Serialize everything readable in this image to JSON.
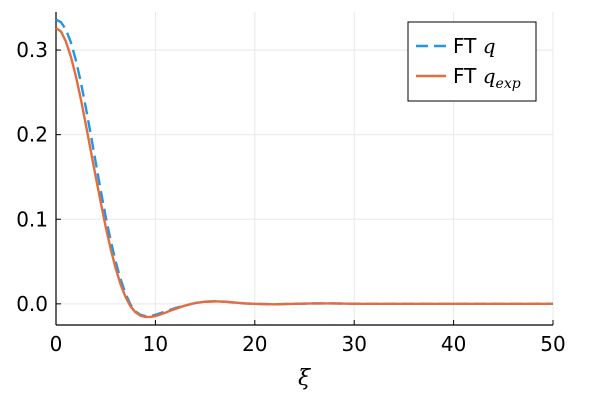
{
  "chart_data": {
    "type": "line",
    "title": "",
    "xlabel": "ξ",
    "ylabel": "",
    "xlim": [
      0,
      50
    ],
    "ylim": [
      -0.025,
      0.345
    ],
    "xticks": [
      0,
      10,
      20,
      30,
      40,
      50
    ],
    "xtick_labels": [
      "0",
      "10",
      "20",
      "30",
      "40",
      "50"
    ],
    "yticks": [
      0.0,
      0.1,
      0.2,
      0.3
    ],
    "ytick_labels": [
      "0.0",
      "0.1",
      "0.2",
      "0.3"
    ],
    "grid": true,
    "legend_position": "top-right",
    "series": [
      {
        "name": "FT q",
        "legend_prefix": "FT ",
        "legend_math": "q",
        "color": "#1f96e8",
        "style": "dashed",
        "x": [
          0,
          0.5,
          1,
          1.5,
          2,
          2.5,
          3,
          3.5,
          4,
          4.5,
          5,
          5.5,
          6,
          6.5,
          7,
          7.5,
          8,
          8.5,
          9,
          9.5,
          10,
          10.5,
          11,
          11.5,
          12,
          13,
          14,
          15,
          16,
          17,
          18,
          19,
          20,
          22,
          24,
          26,
          28,
          30,
          35,
          40,
          45,
          50
        ],
        "y": [
          0.336,
          0.333,
          0.324,
          0.309,
          0.288,
          0.262,
          0.232,
          0.2,
          0.167,
          0.134,
          0.103,
          0.075,
          0.05,
          0.029,
          0.012,
          -0.001,
          -0.009,
          -0.013,
          -0.0145,
          -0.0145,
          -0.013,
          -0.011,
          -0.009,
          -0.007,
          -0.005,
          -0.002,
          0.001,
          0.0025,
          0.003,
          0.0025,
          0.0015,
          0.0005,
          0.0,
          -0.0005,
          0.0,
          0.0005,
          0.0005,
          0.0,
          0.0,
          0.0,
          0.0,
          0.0
        ]
      },
      {
        "name": "FT q_exp",
        "legend_prefix": "FT ",
        "legend_math": "q",
        "legend_sub": "exp",
        "color": "#e26d3e",
        "style": "solid",
        "x": [
          0,
          0.5,
          1,
          1.5,
          2,
          2.5,
          3,
          3.5,
          4,
          4.5,
          5,
          5.5,
          6,
          6.5,
          7,
          7.5,
          8,
          8.5,
          9,
          9.5,
          10,
          10.5,
          11,
          11.5,
          12,
          13,
          14,
          15,
          16,
          17,
          18,
          19,
          20,
          22,
          24,
          26,
          28,
          30,
          35,
          40,
          45,
          50
        ],
        "y": [
          0.326,
          0.322,
          0.31,
          0.292,
          0.269,
          0.242,
          0.212,
          0.181,
          0.15,
          0.12,
          0.091,
          0.065,
          0.042,
          0.023,
          0.008,
          -0.003,
          -0.01,
          -0.014,
          -0.0155,
          -0.0155,
          -0.0145,
          -0.0125,
          -0.0105,
          -0.008,
          -0.006,
          -0.002,
          0.001,
          0.0025,
          0.003,
          0.0025,
          0.0015,
          0.0005,
          0.0,
          -0.0005,
          0.0,
          0.0005,
          0.0005,
          0.0,
          0.0,
          0.0,
          0.0,
          0.0
        ]
      }
    ]
  }
}
